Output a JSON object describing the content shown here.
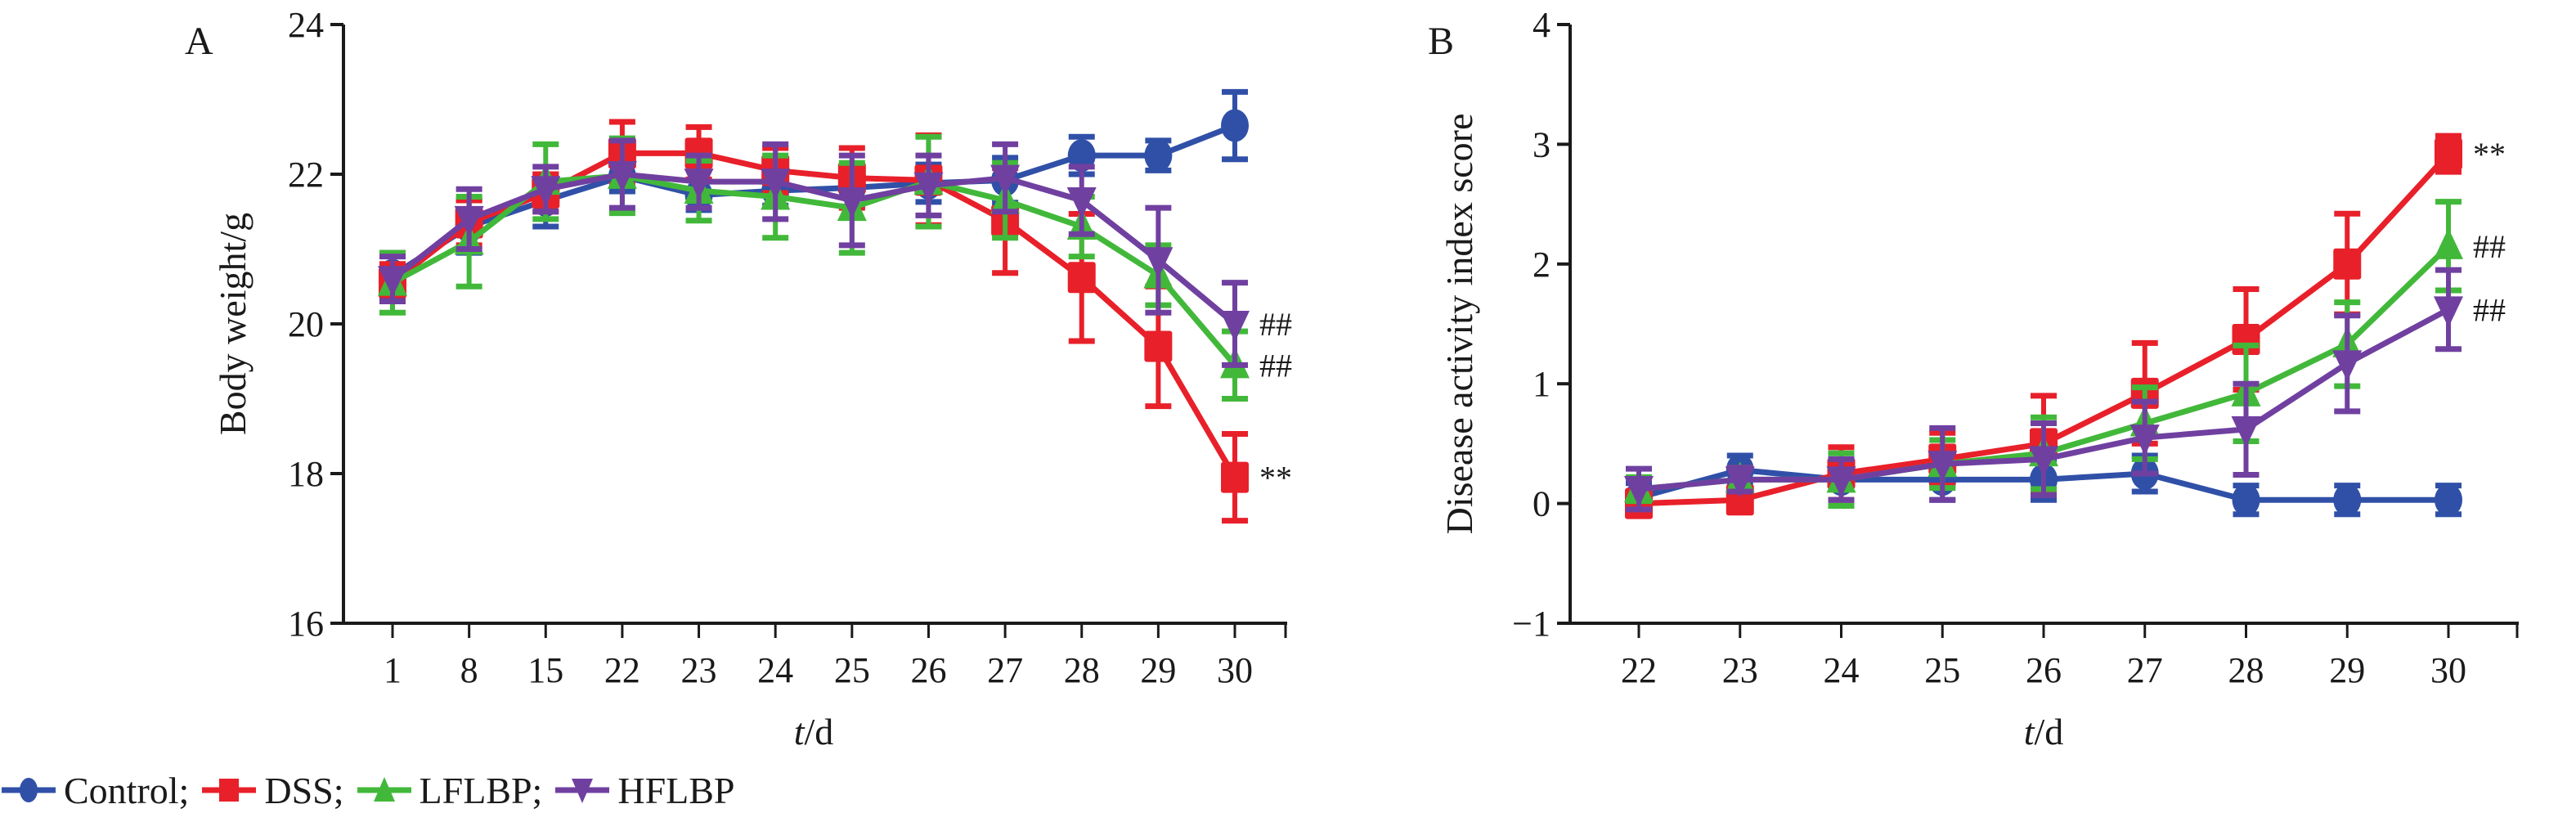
{
  "chart_data": [
    {
      "type": "line",
      "panel_label": "A",
      "title": "",
      "xlabel_italic": "t",
      "xlabel_rest": "/d",
      "ylabel": "Body weight/g",
      "categories": [
        "1",
        "8",
        "15",
        "22",
        "23",
        "24",
        "25",
        "26",
        "27",
        "28",
        "29",
        "30"
      ],
      "ylim": [
        16,
        24
      ],
      "yticks": [
        16,
        18,
        20,
        22,
        24
      ],
      "grid": false,
      "error_bars": true,
      "series": [
        {
          "name": "Control",
          "color": "#3050a8",
          "marker": "circle",
          "values": [
            20.65,
            21.3,
            21.65,
            21.97,
            21.72,
            21.78,
            21.82,
            21.88,
            21.92,
            22.25,
            22.25,
            22.65
          ],
          "errors": [
            0.3,
            0.35,
            0.35,
            0.2,
            0.2,
            0.2,
            0.25,
            0.25,
            0.3,
            0.25,
            0.2,
            0.45
          ]
        },
        {
          "name": "DSS",
          "color": "#e8202a",
          "marker": "square",
          "values": [
            20.55,
            21.35,
            21.75,
            22.28,
            22.28,
            22.05,
            21.95,
            21.92,
            21.38,
            20.62,
            19.7,
            17.95
          ],
          "errors": [
            0.25,
            0.3,
            0.25,
            0.42,
            0.35,
            0.3,
            0.4,
            0.6,
            0.7,
            0.85,
            0.8,
            0.58
          ]
        },
        {
          "name": "LFLBP",
          "color": "#42b83a",
          "marker": "triangle-up",
          "values": [
            20.55,
            21.1,
            21.9,
            21.98,
            21.78,
            21.7,
            21.55,
            21.9,
            21.65,
            21.3,
            20.65,
            19.45
          ],
          "errors": [
            0.4,
            0.6,
            0.5,
            0.5,
            0.4,
            0.55,
            0.6,
            0.6,
            0.5,
            0.4,
            0.4,
            0.45
          ]
        },
        {
          "name": "HFLBP",
          "color": "#7040a0",
          "marker": "triangle-down",
          "values": [
            20.6,
            21.4,
            21.8,
            22.0,
            21.9,
            21.9,
            21.65,
            21.85,
            21.95,
            21.65,
            20.85,
            20.0
          ],
          "errors": [
            0.3,
            0.4,
            0.3,
            0.45,
            0.35,
            0.5,
            0.6,
            0.4,
            0.45,
            0.45,
            0.7,
            0.55
          ]
        }
      ],
      "annotations": [
        {
          "series": "HFLBP",
          "category": "30",
          "text": "##"
        },
        {
          "series": "LFLBP",
          "category": "30",
          "text": "##"
        },
        {
          "series": "DSS",
          "category": "30",
          "text": "**"
        }
      ]
    },
    {
      "type": "line",
      "panel_label": "B",
      "title": "",
      "xlabel_italic": "t",
      "xlabel_rest": "/d",
      "ylabel": "Disease activity index score",
      "categories": [
        "22",
        "23",
        "24",
        "25",
        "26",
        "27",
        "28",
        "29",
        "30"
      ],
      "ylim": [
        -1,
        4
      ],
      "yticks": [
        -1,
        0,
        1,
        2,
        3,
        4
      ],
      "grid": false,
      "error_bars": true,
      "series": [
        {
          "name": "Control",
          "color": "#3050a8",
          "marker": "circle",
          "values": [
            0.05,
            0.28,
            0.2,
            0.2,
            0.2,
            0.25,
            0.03,
            0.03,
            0.03
          ],
          "errors": [
            0.12,
            0.12,
            0.17,
            0.17,
            0.17,
            0.15,
            0.12,
            0.12,
            0.12
          ]
        },
        {
          "name": "DSS",
          "color": "#e8202a",
          "marker": "square",
          "values": [
            0.0,
            0.03,
            0.25,
            0.37,
            0.5,
            0.92,
            1.37,
            2.0,
            2.92
          ],
          "errors": [
            0.05,
            0.1,
            0.22,
            0.22,
            0.4,
            0.42,
            0.42,
            0.42,
            0.15
          ]
        },
        {
          "name": "LFLBP",
          "color": "#42b83a",
          "marker": "triangle-up",
          "values": [
            0.12,
            0.2,
            0.2,
            0.33,
            0.42,
            0.67,
            0.92,
            1.33,
            2.15
          ],
          "errors": [
            0.1,
            0.1,
            0.22,
            0.2,
            0.3,
            0.3,
            0.4,
            0.35,
            0.37
          ]
        },
        {
          "name": "HFLBP",
          "color": "#7040a0",
          "marker": "triangle-down",
          "values": [
            0.12,
            0.2,
            0.2,
            0.33,
            0.37,
            0.55,
            0.62,
            1.17,
            1.62
          ],
          "errors": [
            0.17,
            0.1,
            0.17,
            0.3,
            0.3,
            0.3,
            0.38,
            0.4,
            0.33
          ]
        }
      ],
      "annotations": [
        {
          "series": "DSS",
          "category": "30",
          "text": "**"
        },
        {
          "series": "LFLBP",
          "category": "30",
          "text": "##"
        },
        {
          "series": "HFLBP",
          "category": "30",
          "text": "##"
        }
      ]
    }
  ],
  "legend": {
    "placement": "bottom-left",
    "items": [
      {
        "label": "Control;",
        "color": "#3050a8",
        "marker": "circle"
      },
      {
        "label": "DSS;",
        "color": "#e8202a",
        "marker": "square"
      },
      {
        "label": "LFLBP;",
        "color": "#42b83a",
        "marker": "triangle-up"
      },
      {
        "label": "HFLBP",
        "color": "#7040a0",
        "marker": "triangle-down"
      }
    ]
  }
}
